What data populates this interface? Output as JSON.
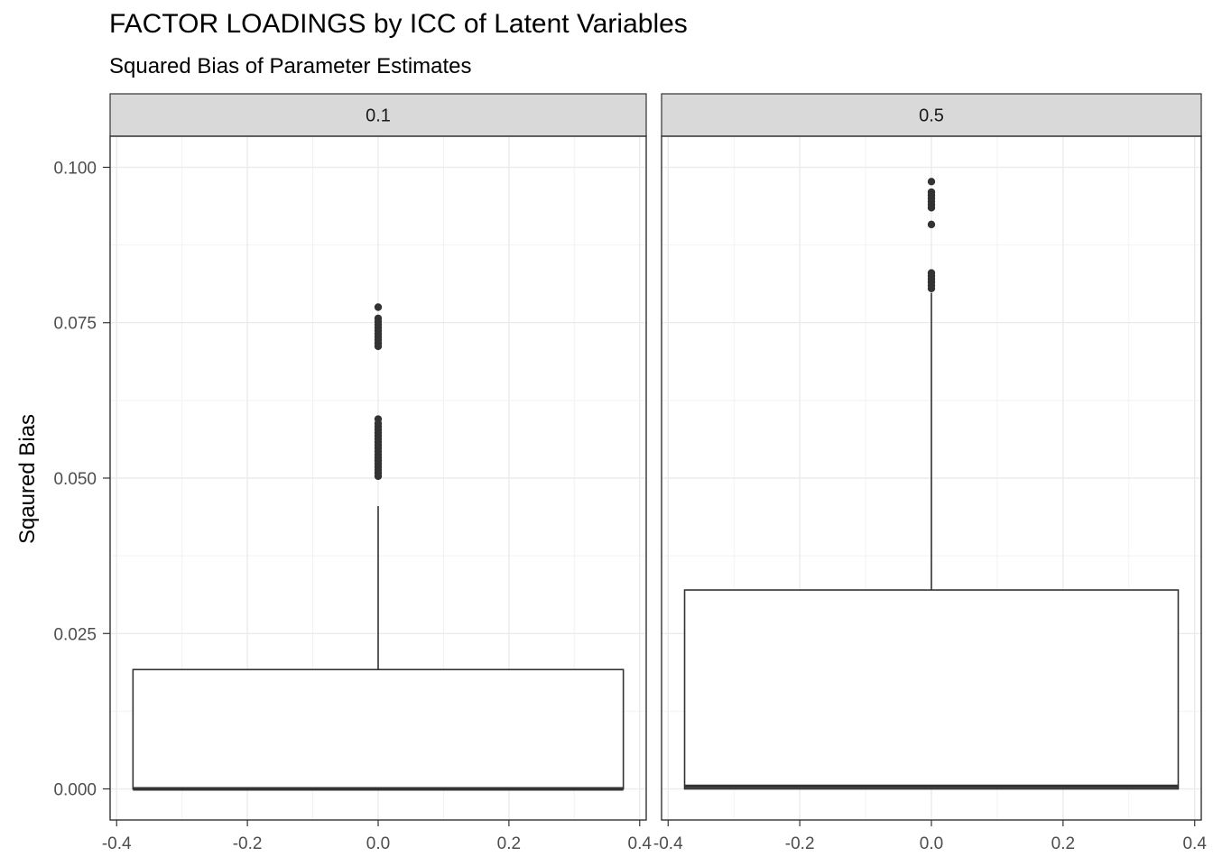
{
  "title": "FACTOR LOADINGS by ICC of Latent Variables",
  "subtitle": "Squared Bias of Parameter Estimates",
  "chart_data": {
    "type": "boxplot",
    "title": "FACTOR LOADINGS by ICC of Latent Variables",
    "subtitle": "Squared Bias of Parameter Estimates",
    "xlabel": "",
    "ylabel": "Sqaured Bias",
    "facet_variable_levels": [
      "0.1",
      "0.5"
    ],
    "ylim": [
      -0.005,
      0.105
    ],
    "xlim": [
      -0.41,
      0.41
    ],
    "y_ticks": [
      0.0,
      0.025,
      0.05,
      0.075,
      0.1
    ],
    "y_tick_labels": [
      "0.000",
      "0.025",
      "0.050",
      "0.075",
      "0.100"
    ],
    "x_ticks": [
      -0.4,
      -0.2,
      0.0,
      0.2,
      0.4
    ],
    "x_tick_labels": [
      "-0.4",
      "-0.2",
      "0.0",
      "0.2",
      "0.4"
    ],
    "grid": true,
    "theme": "bw",
    "colors": {
      "box": "#333333",
      "grid": "#ebebeb",
      "strip_fill": "#d9d9d9",
      "panel_border": "#333333"
    },
    "panels": [
      {
        "facet": "0.1",
        "box": {
          "x_min": -0.375,
          "x_max": 0.375,
          "lower": 0.0,
          "median": 0.0,
          "upper": 0.0192,
          "whisker_low": 0.0,
          "whisker_high": 0.0455
        },
        "outliers": [
          0.0503,
          0.0508,
          0.0513,
          0.0518,
          0.0523,
          0.0528,
          0.0533,
          0.0538,
          0.0543,
          0.0548,
          0.0553,
          0.0558,
          0.0563,
          0.0568,
          0.0573,
          0.0578,
          0.0583,
          0.0588,
          0.0595,
          0.0712,
          0.0717,
          0.0722,
          0.0727,
          0.0732,
          0.0737,
          0.0742,
          0.0747,
          0.0752,
          0.0757,
          0.0775
        ]
      },
      {
        "facet": "0.5",
        "box": {
          "x_min": -0.375,
          "x_max": 0.375,
          "lower": 0.0,
          "median": 0.0004,
          "upper": 0.032,
          "whisker_low": 0.0,
          "whisker_high": 0.0798
        },
        "outliers": [
          0.0805,
          0.081,
          0.0815,
          0.082,
          0.0825,
          0.083,
          0.0908,
          0.0935,
          0.094,
          0.0945,
          0.095,
          0.0955,
          0.096,
          0.0977
        ]
      }
    ]
  }
}
